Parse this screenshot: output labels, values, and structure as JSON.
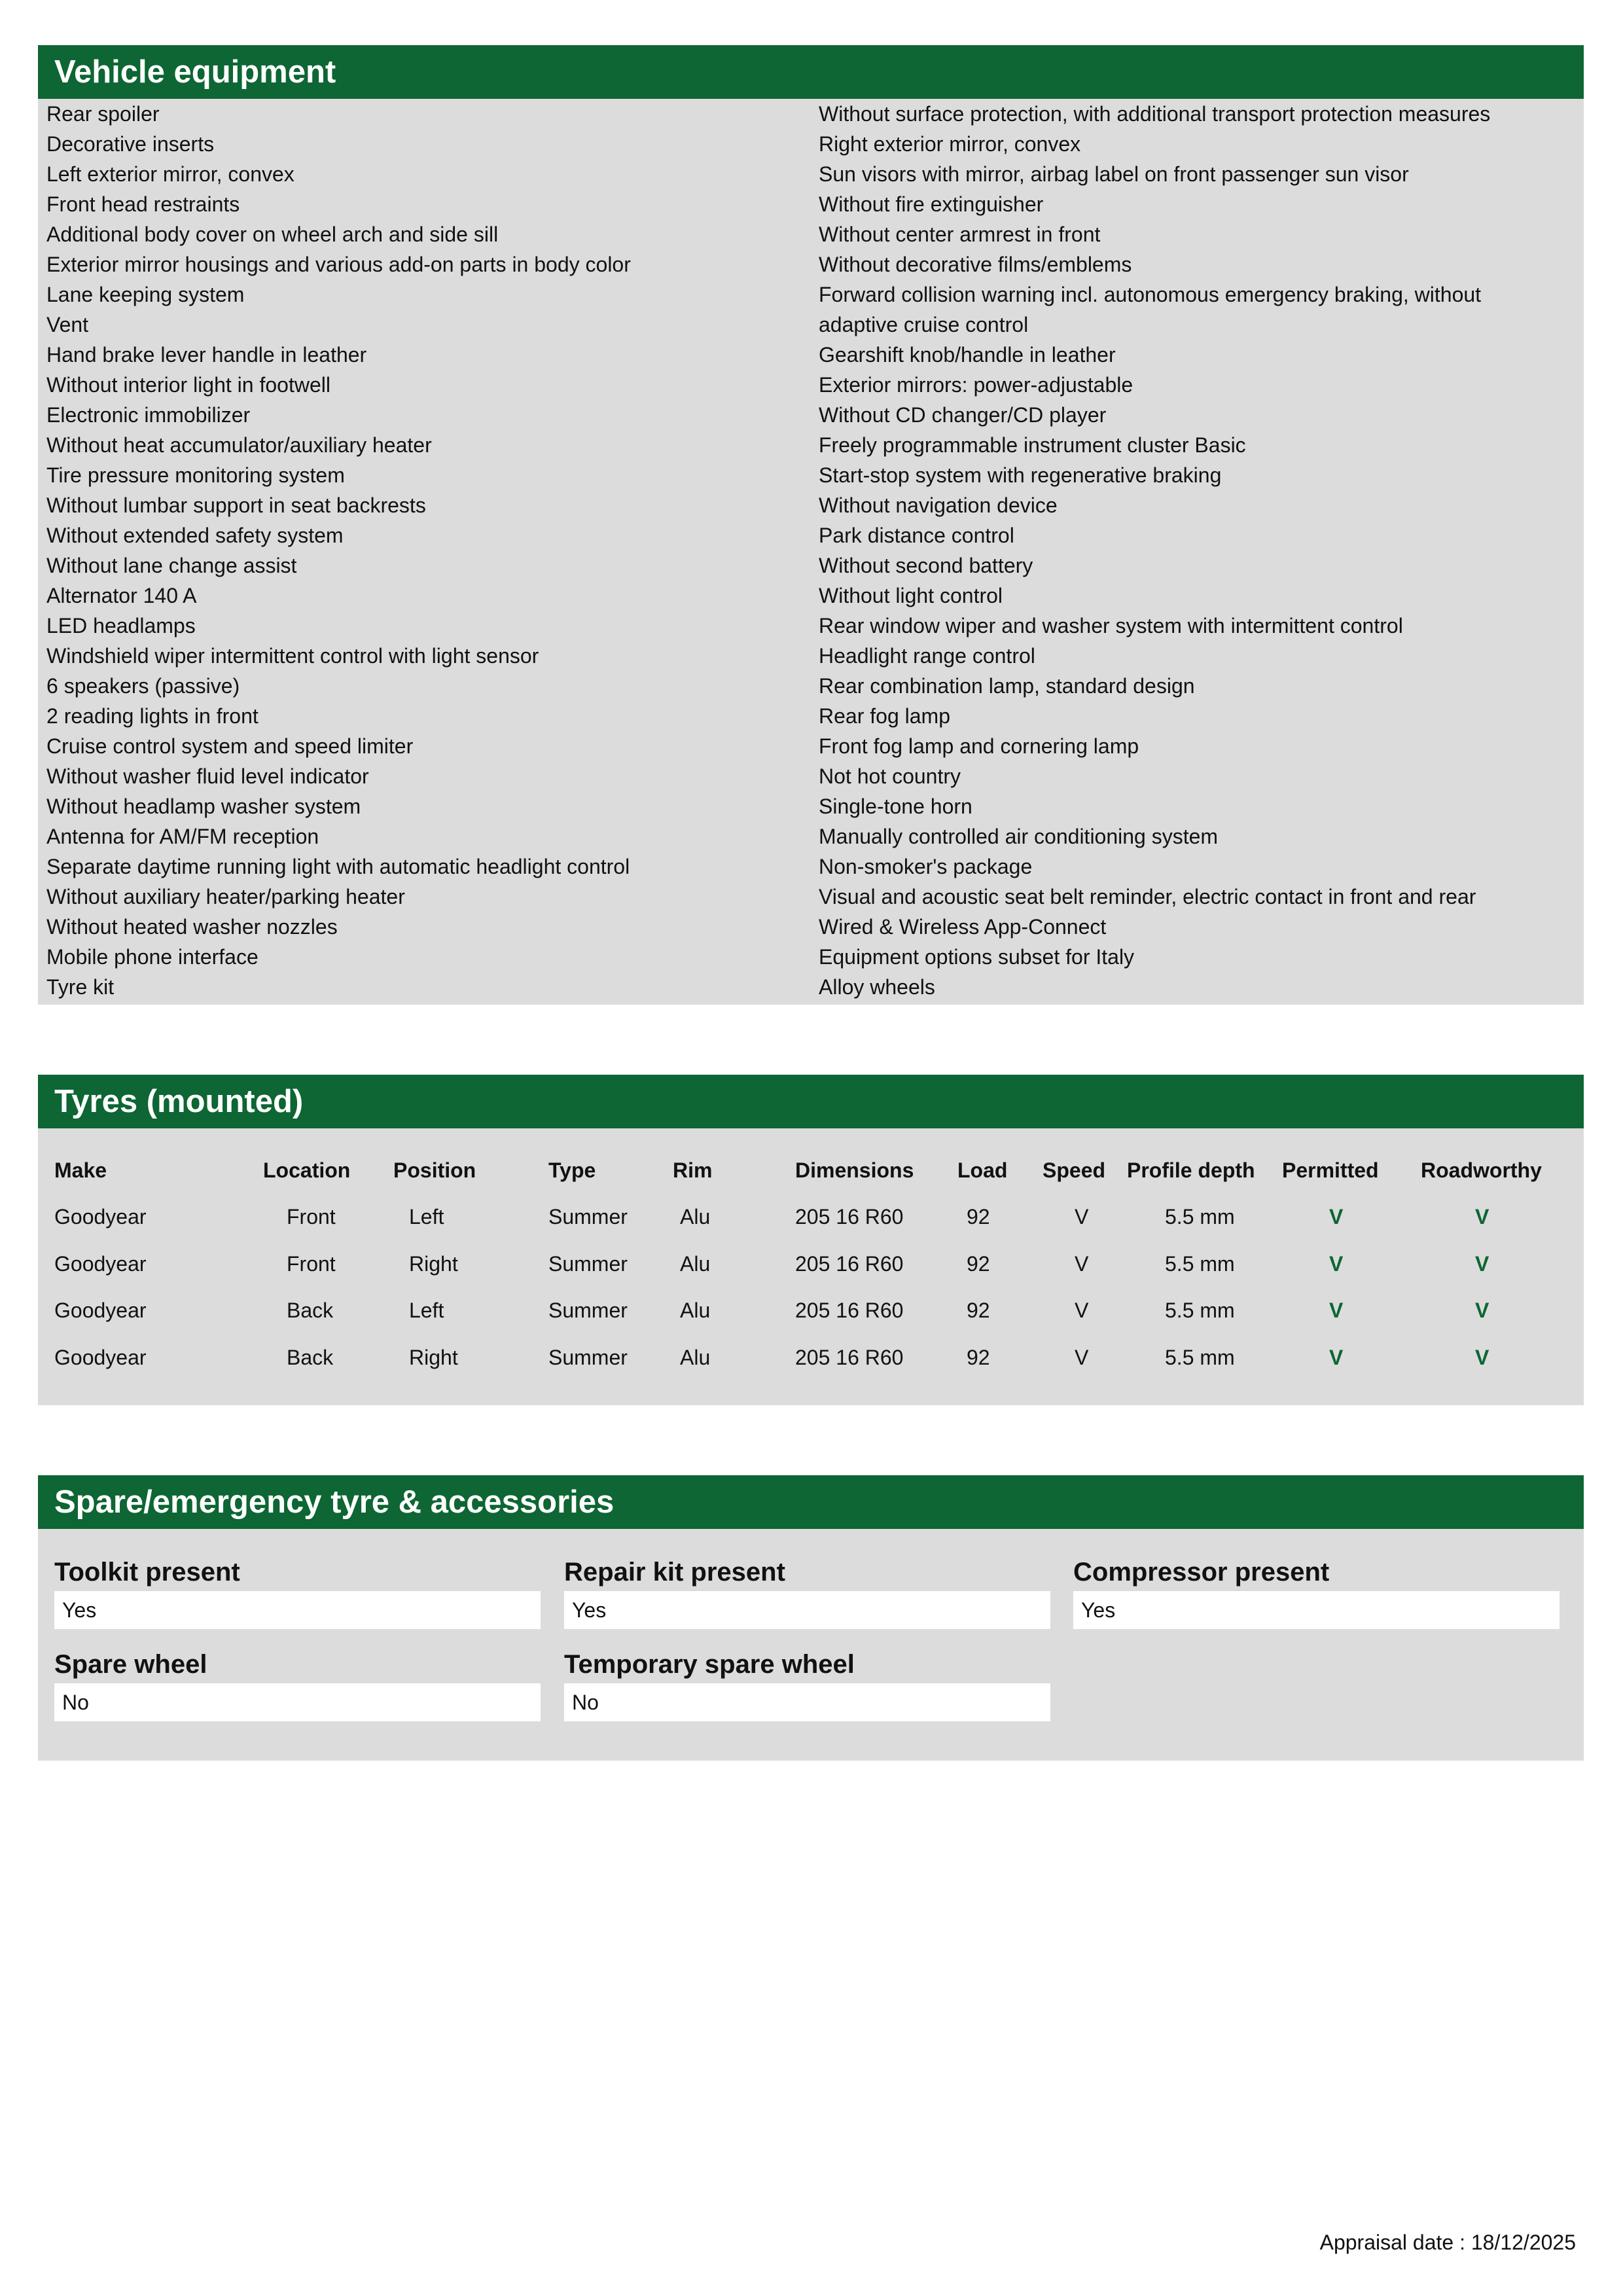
{
  "vehicle_equipment": {
    "title": "Vehicle equipment",
    "left": [
      "Rear spoiler",
      "Decorative inserts",
      "Left exterior mirror, convex",
      "Front head restraints",
      "Additional body cover on wheel arch and side sill",
      "Exterior mirror housings and various add-on parts in body color",
      "Lane keeping system",
      "Vent",
      "Hand brake lever handle in leather",
      "Without interior light in footwell",
      "Electronic immobilizer",
      "Without heat accumulator/auxiliary heater",
      "Tire pressure monitoring system",
      "Without lumbar support in seat backrests",
      "Without extended safety system",
      "Without lane change assist",
      "Alternator 140 A",
      "LED headlamps",
      "Windshield wiper intermittent control with light sensor",
      "6 speakers (passive)",
      "2 reading lights in front",
      "Cruise control system and speed limiter",
      "Without washer fluid level indicator",
      "Without headlamp washer system",
      "Antenna for AM/FM reception",
      "Separate daytime running light with automatic headlight control",
      "Without auxiliary heater/parking heater",
      "Without heated washer nozzles",
      "Mobile phone interface",
      "Tyre kit"
    ],
    "right": [
      "Without surface protection, with additional transport protection measures",
      "Right exterior mirror, convex",
      "Sun visors with mirror, airbag label on front passenger sun visor",
      "Without fire extinguisher",
      "Without center armrest in front",
      "Without decorative films/emblems",
      "Forward collision warning incl. autonomous emergency braking, without adaptive cruise control",
      "Gearshift knob/handle in leather",
      "Exterior mirrors: power-adjustable",
      "Without CD changer/CD player",
      "Freely programmable instrument cluster Basic",
      "Start-stop system with regenerative braking",
      "Without navigation device",
      "Park distance control",
      "Without second battery",
      "Without light control",
      "Rear window wiper and washer system with intermittent control",
      "Headlight range control",
      "Rear combination lamp, standard design",
      "Rear fog lamp",
      "Front fog lamp and cornering lamp",
      "Not hot country",
      "Single-tone horn",
      "Manually controlled air conditioning system",
      "Non-smoker's package",
      "Visual and acoustic seat belt reminder, electric contact in front and rear",
      "Wired & Wireless App-Connect",
      "Equipment options subset for Italy",
      "Alloy wheels"
    ]
  },
  "tyres": {
    "title": "Tyres (mounted)",
    "headers": [
      "Make",
      "Location",
      "Position",
      "Type",
      "Rim",
      "Dimensions",
      "Load",
      "Speed",
      "Profile depth",
      "Permitted",
      "Roadworthy"
    ],
    "rows": [
      [
        "Goodyear",
        "Front",
        "Left",
        "Summer",
        "Alu",
        "205 16 R60",
        "92",
        "V",
        "5.5 mm",
        "V",
        "V"
      ],
      [
        "Goodyear",
        "Front",
        "Right",
        "Summer",
        "Alu",
        "205 16 R60",
        "92",
        "V",
        "5.5 mm",
        "V",
        "V"
      ],
      [
        "Goodyear",
        "Back",
        "Left",
        "Summer",
        "Alu",
        "205 16 R60",
        "92",
        "V",
        "5.5 mm",
        "V",
        "V"
      ],
      [
        "Goodyear",
        "Back",
        "Right",
        "Summer",
        "Alu",
        "205 16 R60",
        "92",
        "V",
        "5.5 mm",
        "V",
        "V"
      ]
    ]
  },
  "spare": {
    "title": "Spare/emergency tyre & accessories",
    "fields": [
      {
        "label": "Toolkit present",
        "value": "Yes"
      },
      {
        "label": "Repair kit present",
        "value": "Yes"
      },
      {
        "label": "Compressor present",
        "value": "Yes"
      },
      {
        "label": "Spare wheel",
        "value": "No"
      },
      {
        "label": "Temporary spare wheel",
        "value": "No"
      }
    ]
  },
  "footer": {
    "appraisal_date": "Appraisal date : 18/12/2025"
  },
  "colors": {
    "accent": "#0d6633",
    "panel": "#dcdcdc"
  }
}
